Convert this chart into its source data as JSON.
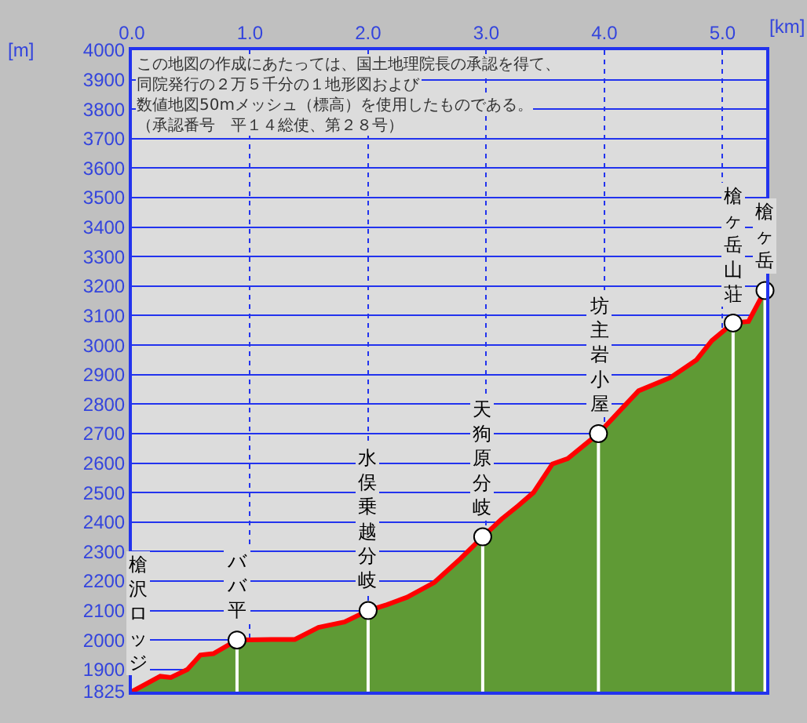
{
  "chart_data": {
    "type": "area",
    "xlabel": "[km]",
    "ylabel": "[m]",
    "xlim": [
      0,
      5.37
    ],
    "xticks": [
      {
        "value": 0,
        "label": "0.0"
      },
      {
        "value": 1,
        "label": "1.0"
      },
      {
        "value": 2,
        "label": "2.0"
      },
      {
        "value": 3,
        "label": "3.0"
      },
      {
        "value": 4,
        "label": "4.0"
      },
      {
        "value": 5,
        "label": "5.0"
      }
    ],
    "ylim": [
      1825,
      4000
    ],
    "yticks": [
      1825,
      1900,
      2000,
      2100,
      2200,
      2300,
      2400,
      2500,
      2600,
      2700,
      2800,
      2900,
      3000,
      3100,
      3200,
      3300,
      3400,
      3500,
      3600,
      3700,
      3800,
      3900,
      4000
    ],
    "grid": true,
    "series": [
      {
        "color": "#5f9a35",
        "x": [
          0,
          0.24,
          0.33,
          0.47,
          0.58,
          0.69,
          0.89,
          1.18,
          1.38,
          1.58,
          1.8,
          2.0,
          2.16,
          2.33,
          2.56,
          2.78,
          2.97,
          3.13,
          3.27,
          3.4,
          3.56,
          3.69,
          3.95,
          4.16,
          4.29,
          4.56,
          4.78,
          4.91,
          5.09,
          5.22,
          5.36
        ],
        "values": [
          1825,
          1877,
          1873,
          1900,
          1949,
          1954,
          2000,
          2002,
          2002,
          2043,
          2061,
          2100,
          2120,
          2145,
          2195,
          2275,
          2350,
          2410,
          2455,
          2500,
          2597,
          2615,
          2700,
          2790,
          2845,
          2890,
          2950,
          3015,
          3075,
          3080,
          3185
        ]
      },
      {
        "type": "line",
        "color": "#ff0000",
        "x": [
          0,
          0.24,
          0.33,
          0.47,
          0.58,
          0.69,
          0.89,
          1.18,
          1.38,
          1.58,
          1.8,
          2.0,
          2.16,
          2.33,
          2.56,
          2.78,
          2.97,
          3.13,
          3.27,
          3.4,
          3.56,
          3.69,
          3.95,
          4.16,
          4.29,
          4.56,
          4.78,
          4.91,
          5.09,
          5.22,
          5.36
        ],
        "values": [
          1825,
          1877,
          1873,
          1900,
          1949,
          1954,
          2000,
          2002,
          2002,
          2043,
          2061,
          2100,
          2120,
          2145,
          2195,
          2275,
          2350,
          2410,
          2455,
          2500,
          2597,
          2615,
          2700,
          2790,
          2845,
          2890,
          2950,
          3015,
          3075,
          3080,
          3185
        ]
      },
      {
        "type": "lollipop",
        "color": "#ffffff",
        "marker": "circle",
        "x": [
          0.89,
          2.0,
          2.97,
          3.95,
          5.09,
          5.36
        ],
        "values": [
          2000,
          2100,
          2350,
          2700,
          3075,
          3185
        ]
      }
    ],
    "annotations": [
      "この地図の作成にあたっては、国土地理院長の承認を得て、",
      "同院発行の２万５千分の１地形図および",
      "数値地図50mメッシュ（標高）を使用したものである。",
      "（承認番号　平１４総使、第２８号）",
      {
        "text": "槍沢ロッジ",
        "x": 0,
        "y": 1825
      },
      {
        "text": "ババ平",
        "x": 0.89,
        "y": 2000
      },
      {
        "text": "水俣乗越分岐",
        "x": 2.0,
        "y": 2100
      },
      {
        "text": "天狗原分岐",
        "x": 2.97,
        "y": 2350
      },
      {
        "text": "坊主岩小屋",
        "x": 3.95,
        "y": 2700
      },
      {
        "text": "槍ヶ岳山荘",
        "x": 5.09,
        "y": 3075
      },
      {
        "text": "槍ヶ岳",
        "x": 5.36,
        "y": 3185
      }
    ]
  }
}
